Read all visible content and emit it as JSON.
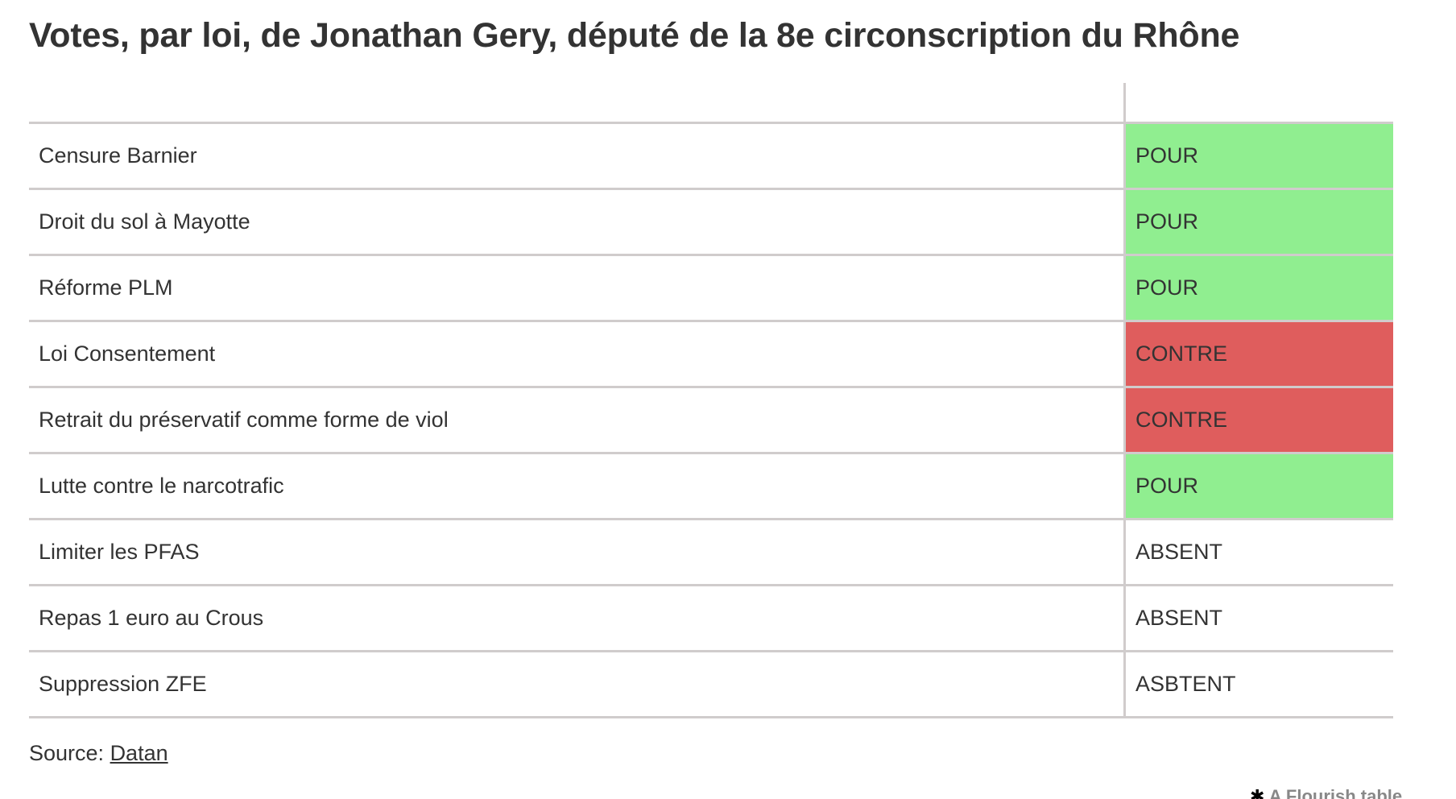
{
  "title": "Votes, par loi, de Jonathan Gery, député de la 8e circonscription du Rhône",
  "colors": {
    "POUR": "#90ee90",
    "CONTRE": "#df5d5d",
    "ABSENT": "#ffffff",
    "ASBTENT": "#ffffff"
  },
  "rows": [
    {
      "law": "Censure Barnier",
      "vote": "POUR"
    },
    {
      "law": "Droit du sol à Mayotte",
      "vote": "POUR"
    },
    {
      "law": "Réforme PLM",
      "vote": "POUR"
    },
    {
      "law": "Loi Consentement",
      "vote": "CONTRE"
    },
    {
      "law": "Retrait du préservatif comme forme de viol",
      "vote": "CONTRE"
    },
    {
      "law": "Lutte contre le narcotrafic",
      "vote": "POUR"
    },
    {
      "law": "Limiter les PFAS",
      "vote": "ABSENT"
    },
    {
      "law": "Repas 1 euro au Crous",
      "vote": "ABSENT"
    },
    {
      "law": "Suppression ZFE",
      "vote": "ASBTENT"
    }
  ],
  "source": {
    "label": "Source: ",
    "link": "Datan"
  },
  "footer": {
    "icon": "flourish-asterisk-icon",
    "text": "A Flourish table"
  }
}
